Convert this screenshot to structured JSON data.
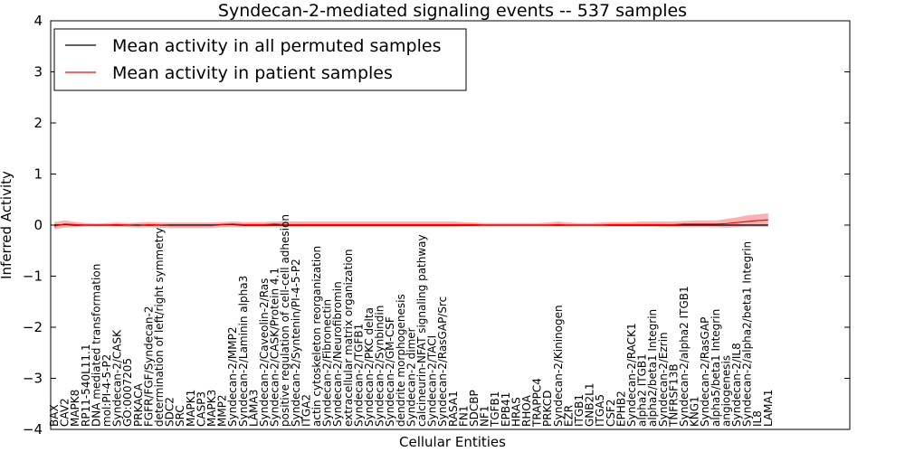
{
  "chart_data": {
    "type": "line",
    "title": "Syndecan-2-mediated signaling events -- 537 samples",
    "xlabel": "Cellular Entities",
    "ylabel": "Inferred Activity",
    "ylim": [
      -4,
      4
    ],
    "yticks": [
      "4",
      "3",
      "2",
      "1",
      "0",
      "−1",
      "−2",
      "−3",
      "−4"
    ],
    "legend_position": "top-left",
    "categories": [
      "BAX",
      "CAV2",
      "MAPK8",
      "RP11-540L11.1",
      "DNA mediated transformation",
      "mol:PI-4-5-P2",
      "Syndecan-2/CASK",
      "GO:0007205",
      "PRKACA",
      "FGFR/FGF/Syndecan-2",
      "determination of left/right symmetry",
      "SDC2",
      "SRC",
      "MAPK1",
      "CASP3",
      "MAPK3",
      "MMP2",
      "Syndecan-2/MMP2",
      "Syndecan-2/Laminin alpha3",
      "LAMA3",
      "Syndecan-2/Caveolin-2/Ras",
      "Syndecan-2/CASK/Protein 4.1",
      "positive regulation of cell-cell adhesion",
      "Syndecan-2/Syntenin/PI-4-5-P2",
      "ITGA2",
      "actin cytoskeleton reorganization",
      "Syndecan-2/Fibronectin",
      "Syndecan-2/Neurofibromin",
      "extracellular matrix organization",
      "Syndecan-2/TGFB1",
      "Syndecan-2/PKC delta",
      "Syndecan-2/Synbindin",
      "Syndecan-2/GM-CSF",
      "dendrite morphogenesis",
      "Syndecan-2 dimer",
      "calcineurin-NFAT signaling pathway",
      "Syndecan-2/TACI",
      "Syndecan-2/RasGAP/Src",
      "RASA1",
      "FN1",
      "SDCBP",
      "NF1",
      "TGFB1",
      "EPB41",
      "HRAS",
      "RHOA",
      "TRAPPC4",
      "PRKCD",
      "Syndecan-2/Kininogen",
      "EZR",
      "ITGB1",
      "GNB2L1",
      "ITGA5",
      "CSF2",
      "EPHB2",
      "Syndecan-2/RACK1",
      "alpha2 ITGB1",
      "alpha2/beta1 Integrin",
      "Syndecan-2/Ezrin",
      "TNFRSF13B",
      "Syndecan-2/alpha2 ITGB1",
      "KNG1",
      "Syndecan-2/RasGAP",
      "alpha5/beta1 Integrin",
      "angiogenesis",
      "Syndecan-2/IL8",
      "Syndecan-2/alpha2/beta1 Integrin",
      "IL8",
      "LAMA1"
    ],
    "series": [
      {
        "name": "Mean activity in all permuted samples",
        "color": "#000000",
        "values": [
          0,
          0.01,
          0,
          0,
          0,
          0,
          0,
          0,
          0,
          0,
          0,
          0,
          0,
          0,
          0,
          0,
          0.01,
          0.01,
          0,
          0,
          0,
          0,
          0,
          0,
          0,
          0,
          0,
          0,
          0,
          0,
          0,
          0,
          0,
          0,
          0,
          0,
          0,
          0,
          0,
          0,
          0,
          0,
          0,
          0,
          0,
          0,
          0,
          0,
          0,
          0,
          0,
          0,
          0,
          0,
          0,
          0,
          0,
          0,
          0,
          0,
          0,
          0,
          0,
          0,
          0,
          0,
          0,
          0,
          0
        ],
        "band": 0.02
      },
      {
        "name": "Mean activity in patient samples",
        "color": "#ff0000",
        "band_color": "#f08080",
        "values": [
          -0.02,
          0.02,
          0.01,
          0,
          0,
          0,
          0.01,
          0,
          -0.01,
          0.01,
          0,
          -0.01,
          -0.01,
          -0.01,
          -0.01,
          -0.01,
          0.01,
          0.02,
          0.01,
          0.01,
          0.01,
          0.02,
          0.01,
          0.01,
          0.01,
          0.01,
          0.01,
          0.01,
          0.01,
          0.01,
          0.01,
          0.01,
          0.01,
          0.01,
          0.01,
          0.01,
          0.01,
          0.01,
          0.01,
          0.01,
          0.01,
          0,
          0,
          0,
          0,
          0,
          0,
          0,
          0.01,
          0,
          0,
          0,
          0,
          0.01,
          0.01,
          0.01,
          0.01,
          0.01,
          0.01,
          0.01,
          0.02,
          0.02,
          0.02,
          0.02,
          0.03,
          0.05,
          0.07,
          0.09,
          0.1
        ],
        "band_low": [
          -0.08,
          -0.05,
          -0.04,
          -0.03,
          -0.03,
          -0.03,
          -0.03,
          -0.04,
          -0.05,
          -0.04,
          -0.05,
          -0.06,
          -0.06,
          -0.06,
          -0.06,
          -0.06,
          -0.04,
          -0.04,
          -0.04,
          -0.04,
          -0.04,
          -0.04,
          -0.04,
          -0.04,
          -0.04,
          -0.04,
          -0.04,
          -0.04,
          -0.04,
          -0.04,
          -0.04,
          -0.04,
          -0.04,
          -0.04,
          -0.04,
          -0.04,
          -0.04,
          -0.04,
          -0.04,
          -0.03,
          -0.03,
          -0.03,
          -0.03,
          -0.03,
          -0.03,
          -0.03,
          -0.03,
          -0.03,
          -0.03,
          -0.03,
          -0.03,
          -0.03,
          -0.03,
          -0.03,
          -0.03,
          -0.03,
          -0.03,
          -0.03,
          -0.04,
          -0.04,
          -0.04,
          -0.04,
          -0.04,
          -0.04,
          -0.05,
          -0.04,
          -0.03,
          -0.03,
          -0.03
        ],
        "band_high": [
          0.06,
          0.09,
          0.06,
          0.04,
          0.03,
          0.04,
          0.05,
          0.04,
          0.05,
          0.06,
          0.05,
          0.05,
          0.05,
          0.05,
          0.05,
          0.05,
          0.06,
          0.07,
          0.06,
          0.06,
          0.06,
          0.07,
          0.07,
          0.07,
          0.07,
          0.07,
          0.07,
          0.07,
          0.07,
          0.07,
          0.07,
          0.07,
          0.07,
          0.07,
          0.07,
          0.07,
          0.07,
          0.07,
          0.07,
          0.06,
          0.05,
          0.04,
          0.04,
          0.04,
          0.04,
          0.04,
          0.04,
          0.05,
          0.07,
          0.05,
          0.04,
          0.04,
          0.05,
          0.06,
          0.06,
          0.06,
          0.07,
          0.07,
          0.07,
          0.07,
          0.08,
          0.09,
          0.09,
          0.09,
          0.12,
          0.15,
          0.19,
          0.21,
          0.23
        ]
      }
    ]
  }
}
